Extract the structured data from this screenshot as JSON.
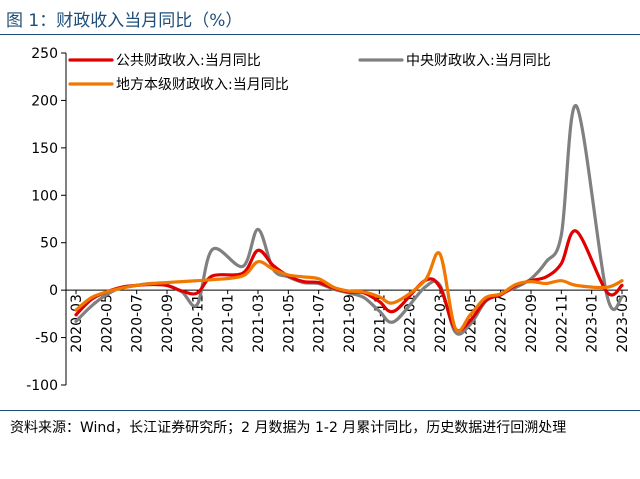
{
  "figure": {
    "title": "图 1：财政收入当月同比（%）",
    "source": "资料来源：Wind，长江证券研究所；2 月数据为 1-2 月累计同比，历史数据进行回溯处理"
  },
  "chart_data": {
    "type": "line",
    "title": "财政收入当月同比（%）",
    "ylim": [
      -100,
      250
    ],
    "yticks": [
      250,
      200,
      150,
      100,
      50,
      0,
      -50,
      -100
    ],
    "xtick_labels": [
      "2020-03",
      "2020-05",
      "2020-07",
      "2020-09",
      "2020-11",
      "2021-01",
      "2021-03",
      "2021-05",
      "2021-07",
      "2021-09",
      "2021-11",
      "2022-01",
      "2022-03",
      "2022-05",
      "2022-07",
      "2022-09",
      "2022-11",
      "2023-01",
      "2023-03"
    ],
    "x": [
      "2020-03",
      "2020-04",
      "2020-05",
      "2020-06",
      "2020-07",
      "2020-08",
      "2020-09",
      "2020-10",
      "2020-11",
      "2020-12",
      "2021-02",
      "2021-03",
      "2021-04",
      "2021-05",
      "2021-06",
      "2021-07",
      "2021-08",
      "2021-09",
      "2021-10",
      "2021-11",
      "2021-12",
      "2022-02",
      "2022-03",
      "2022-04",
      "2022-05",
      "2022-06",
      "2022-07",
      "2022-08",
      "2022-09",
      "2022-10",
      "2022-11",
      "2022-12",
      "2023-02",
      "2023-03"
    ],
    "series": [
      {
        "name": "公共财政收入:当月同比",
        "color": "#e00000",
        "values": [
          -26,
          -10,
          -2,
          3,
          5,
          6,
          5,
          -1,
          -3,
          15,
          18,
          42,
          26,
          15,
          9,
          8,
          2,
          -2,
          -3,
          -12,
          -22,
          10,
          3,
          -41,
          -32,
          -11,
          -5,
          5,
          10,
          14,
          28,
          62,
          -2,
          5
        ]
      },
      {
        "name": "中央财政收入:当月同比",
        "color": "#808080",
        "values": [
          -33,
          -17,
          -5,
          3,
          5,
          7,
          5,
          -2,
          -15,
          43,
          25,
          64,
          22,
          14,
          8,
          7,
          1,
          -3,
          -8,
          -22,
          -33,
          3,
          5,
          -44,
          -36,
          -12,
          -4,
          3,
          12,
          30,
          58,
          194,
          -5,
          -7
        ]
      },
      {
        "name": "地方本级财政收入:当月同比",
        "color": "#f07800",
        "values": [
          -21,
          -8,
          -2,
          2,
          5,
          7,
          8,
          9,
          10,
          11,
          15,
          30,
          22,
          16,
          14,
          12,
          3,
          -1,
          -2,
          -7,
          -13,
          10,
          38,
          -40,
          -26,
          -8,
          -4,
          6,
          9,
          7,
          10,
          5,
          3,
          10
        ]
      }
    ]
  }
}
